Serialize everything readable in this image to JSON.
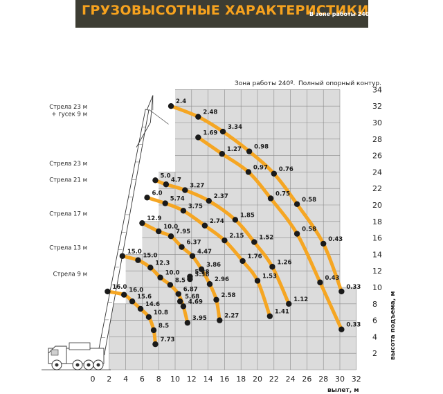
{
  "header": {
    "title": "ГРУЗОВЫСОТНЫЕ ХАРАКТЕРИСТИКИ",
    "subtitle": "В зоне работы 240 º"
  },
  "chart_data": {
    "type": "scatter",
    "title": "ГРУЗОВЫСОТНЫЕ ХАРАКТЕРИСТИКИ",
    "note_zone": "Зона работы 240º.",
    "note_outriggers": "Полный опорный контур.",
    "xlabel": "вылет, м",
    "ylabel": "высота подъема, м",
    "xlim": [
      0,
      32
    ],
    "ylim": [
      0,
      34
    ],
    "x_ticks": [
      0,
      2,
      4,
      6,
      8,
      10,
      12,
      14,
      16,
      18,
      20,
      22,
      24,
      26,
      28,
      30,
      32
    ],
    "y_ticks": [
      2,
      4,
      6,
      8,
      10,
      12,
      14,
      16,
      18,
      20,
      22,
      24,
      26,
      28,
      30,
      32,
      34
    ],
    "grid": true,
    "boom_labels": [
      {
        "text": "Стрела 23 м",
        "level": 31.7
      },
      {
        "text": "+ гусек 9 м",
        "level": 30.8
      },
      {
        "text": "Стрела 23 м",
        "level": 24.8
      },
      {
        "text": "Стрела 21 м",
        "level": 22.8
      },
      {
        "text": "Стрела 17 м",
        "level": 18.7
      },
      {
        "text": "Стрела 13 м",
        "level": 14.6
      },
      {
        "text": "Стрела 9 м",
        "level": 11.4
      }
    ],
    "series": [
      {
        "points": [
          {
            "x": 9.5,
            "y": 32.0,
            "label": "2.4"
          },
          {
            "x": 12.8,
            "y": 30.7,
            "label": "2.48"
          },
          {
            "x": 15.8,
            "y": 28.9,
            "label": "3.34"
          },
          {
            "x": 19.0,
            "y": 26.5,
            "label": "0.98"
          },
          {
            "x": 22.0,
            "y": 23.8,
            "label": "0.76"
          },
          {
            "x": 24.8,
            "y": 20.1,
            "label": "0.58"
          },
          {
            "x": 28.0,
            "y": 15.3,
            "label": "0.43"
          },
          {
            "x": 30.2,
            "y": 9.5,
            "label": "0.33"
          }
        ]
      },
      {
        "points": [
          {
            "x": 12.8,
            "y": 28.2,
            "label": "1.69"
          },
          {
            "x": 15.7,
            "y": 26.2,
            "label": "1.27"
          },
          {
            "x": 18.9,
            "y": 24.0,
            "label": "0.97"
          },
          {
            "x": 21.6,
            "y": 20.8,
            "label": "0.75"
          },
          {
            "x": 24.8,
            "y": 16.5,
            "label": "0.58"
          },
          {
            "x": 27.6,
            "y": 10.6,
            "label": "0.43"
          },
          {
            "x": 30.2,
            "y": 4.9,
            "label": "0.33"
          }
        ]
      },
      {
        "points": [
          {
            "x": 7.6,
            "y": 23.0,
            "label": "5.0"
          },
          {
            "x": 8.9,
            "y": 22.5,
            "label": "4.7"
          },
          {
            "x": 11.2,
            "y": 21.8,
            "label": "3.27"
          },
          {
            "x": 14.1,
            "y": 20.5,
            "label": "2.37"
          },
          {
            "x": 17.3,
            "y": 18.2,
            "label": "1.85"
          },
          {
            "x": 19.6,
            "y": 15.5,
            "label": "1.52"
          },
          {
            "x": 21.8,
            "y": 12.5,
            "label": "1.26"
          },
          {
            "x": 23.8,
            "y": 8.0,
            "label": "1.12"
          }
        ]
      },
      {
        "points": [
          {
            "x": 6.6,
            "y": 20.9,
            "label": "6.0"
          },
          {
            "x": 8.8,
            "y": 20.2,
            "label": "5.74"
          },
          {
            "x": 11.0,
            "y": 19.3,
            "label": "3.75"
          },
          {
            "x": 13.6,
            "y": 17.5,
            "label": "2.74"
          },
          {
            "x": 16.0,
            "y": 15.7,
            "label": "2.15"
          },
          {
            "x": 18.2,
            "y": 13.2,
            "label": "1.76"
          },
          {
            "x": 20.0,
            "y": 10.8,
            "label": "1.53"
          },
          {
            "x": 21.5,
            "y": 6.5,
            "label": "1.41"
          }
        ]
      },
      {
        "points": [
          {
            "x": 6.0,
            "y": 17.8,
            "label": "12.9"
          },
          {
            "x": 8.0,
            "y": 16.8,
            "label": "10.0"
          },
          {
            "x": 9.5,
            "y": 16.2,
            "label": "7.95"
          },
          {
            "x": 10.8,
            "y": 14.9,
            "label": "6.37"
          },
          {
            "x": 12.1,
            "y": 13.8,
            "label": "4.47"
          },
          {
            "x": 13.2,
            "y": 12.2,
            "label": "3.86"
          },
          {
            "x": 14.2,
            "y": 10.4,
            "label": "2.96"
          },
          {
            "x": 15.0,
            "y": 8.5,
            "label": "2.58"
          },
          {
            "x": 15.4,
            "y": 6.0,
            "label": "2.27"
          }
        ]
      },
      {
        "points": [
          {
            "x": 3.6,
            "y": 13.8,
            "label": "15.0"
          },
          {
            "x": 5.5,
            "y": 13.3,
            "label": "15.0"
          },
          {
            "x": 7.0,
            "y": 12.4,
            "label": "12.3"
          },
          {
            "x": 8.2,
            "y": 11.2,
            "label": "10.0"
          },
          {
            "x": 9.4,
            "y": 10.3,
            "label": "8.5"
          },
          {
            "x": 10.4,
            "y": 9.2,
            "label": "6.87"
          },
          {
            "x": 11.0,
            "y": 7.7,
            "label": "4.69"
          },
          {
            "x": 11.5,
            "y": 5.7,
            "label": "3.95"
          },
          {
            "x": 10.6,
            "y": 8.3,
            "label": "5.68"
          },
          {
            "x": 11.8,
            "y": 11.3,
            "label": "5.28"
          },
          {
            "x": 11.8,
            "y": 11.0,
            "label": "3.38"
          }
        ]
      },
      {
        "points": [
          {
            "x": 1.8,
            "y": 9.5,
            "label": "16.0"
          },
          {
            "x": 3.8,
            "y": 9.1,
            "label": "16.0"
          },
          {
            "x": 4.8,
            "y": 8.3,
            "label": "15.6"
          },
          {
            "x": 5.8,
            "y": 7.4,
            "label": "14.6"
          },
          {
            "x": 6.8,
            "y": 6.4,
            "label": "10.8"
          },
          {
            "x": 7.4,
            "y": 4.8,
            "label": "8.5"
          },
          {
            "x": 7.6,
            "y": 3.1,
            "label": "7.73"
          }
        ]
      }
    ],
    "colors": {
      "banner_bg": "#3d3d33",
      "banner_title": "#f6a21e",
      "curve": "#f5a623",
      "point": "#1a1a1a",
      "grid_fill": "#dcdcdc",
      "grid_line": "#8a8a8a"
    }
  }
}
